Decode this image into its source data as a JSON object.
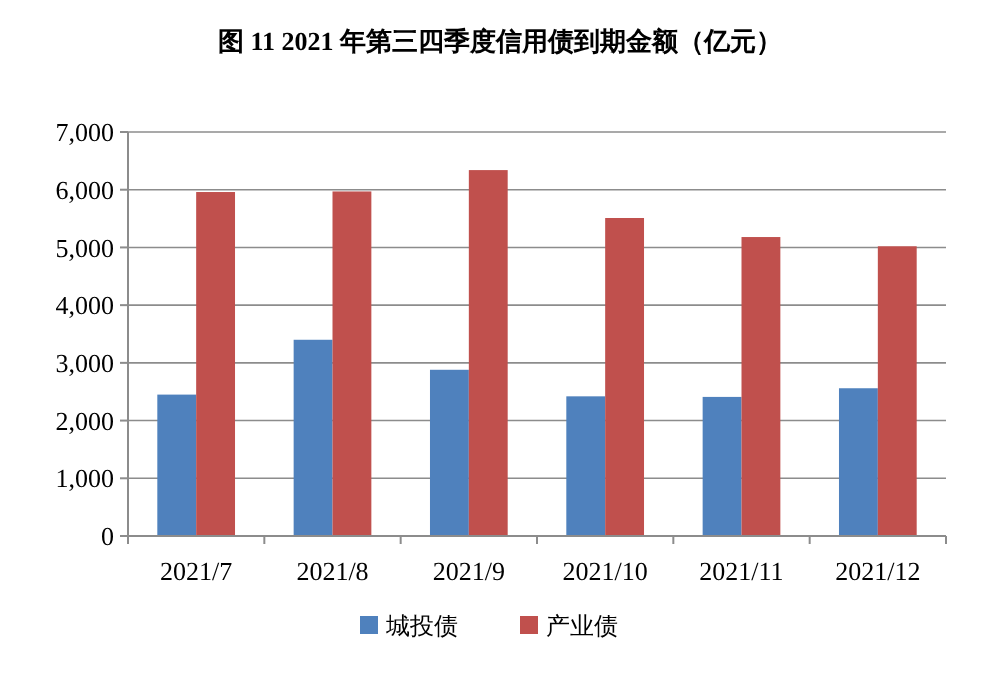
{
  "chart_data": {
    "type": "bar",
    "title": "图 11 2021 年第三四季度信用债到期金额（亿元）",
    "categories": [
      "2021/7",
      "2021/8",
      "2021/9",
      "2021/10",
      "2021/11",
      "2021/12"
    ],
    "series": [
      {
        "name": "城投债",
        "color": "#4f81bd",
        "values": [
          2450,
          3400,
          2880,
          2420,
          2410,
          2560
        ]
      },
      {
        "name": "产业债",
        "color": "#c0504d",
        "values": [
          5960,
          5970,
          6340,
          5510,
          5180,
          5020
        ]
      }
    ],
    "ylim": [
      0,
      7000
    ],
    "yticks": [
      {
        "value": 0,
        "label": "0"
      },
      {
        "value": 1000,
        "label": "1,000"
      },
      {
        "value": 2000,
        "label": "2,000"
      },
      {
        "value": 3000,
        "label": "3,000"
      },
      {
        "value": 4000,
        "label": "4,000"
      },
      {
        "value": 5000,
        "label": "5,000"
      },
      {
        "value": 6000,
        "label": "6,000"
      },
      {
        "value": 7000,
        "label": "7,000"
      }
    ],
    "grid": "y",
    "legend": "bottom"
  }
}
